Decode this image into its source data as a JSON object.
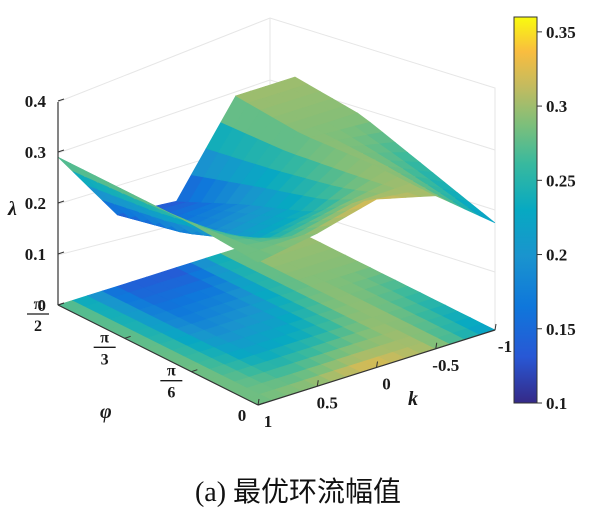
{
  "caption": "(a) 最优环流幅值",
  "chart_data": {
    "type": "surface",
    "title": "",
    "xlabel": "k",
    "ylabel": "φ",
    "zlabel": "λ",
    "x_ticks": [
      "1",
      "0.5",
      "0",
      "-0.5",
      "-1"
    ],
    "y_ticks": [
      {
        "num": "π",
        "den": "2"
      },
      {
        "num": "π",
        "den": "3"
      },
      {
        "num": "π",
        "den": "6"
      },
      {
        "num": "0",
        "den": ""
      }
    ],
    "z_ticks": [
      "0",
      "0.1",
      "0.2",
      "0.3",
      "0.4"
    ],
    "zlim": [
      0,
      0.4
    ],
    "colorbar": {
      "ticks": [
        "0.35",
        "0.3",
        "0.25",
        "0.2",
        "0.15",
        "0.1"
      ],
      "range": [
        0.1,
        0.36
      ],
      "colormap": "parula"
    },
    "k_values": [
      -1,
      -0.5,
      0,
      0.5,
      1
    ],
    "phi_values": [
      "0",
      "π/6",
      "π/3",
      "π/2"
    ],
    "lambda_values": [
      [
        0.21,
        0.3,
        0.33,
        0.3,
        0.28
      ],
      [
        0.25,
        0.3,
        0.24,
        0.22,
        0.29
      ],
      [
        0.29,
        0.29,
        0.19,
        0.17,
        0.29
      ],
      [
        0.3,
        0.3,
        0.13,
        0.14,
        0.29
      ]
    ]
  }
}
